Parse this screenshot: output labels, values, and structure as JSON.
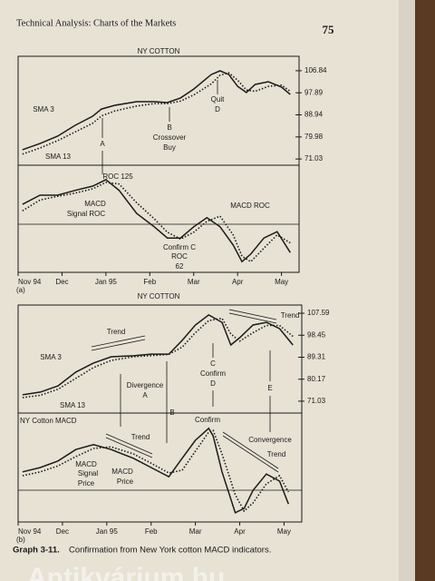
{
  "header": {
    "title": "Technical Analysis: Charts of the Markets",
    "page": "75"
  },
  "chart_data": [
    {
      "type": "line",
      "title": "NY COTTON",
      "xlim": [
        0,
        6.4
      ],
      "ylim": [
        68.5,
        112.7
      ],
      "yticks": [
        71.03,
        79.98,
        88.94,
        97.89,
        106.84
      ],
      "x": [
        0.1,
        0.5,
        0.9,
        1.3,
        1.7,
        1.9,
        2.2,
        2.7,
        3.1,
        3.4,
        3.7,
        4.0,
        4.4,
        4.6,
        4.8,
        5.0,
        5.2,
        5.4,
        5.7,
        6.0,
        6.2
      ],
      "series": [
        {
          "style": "solid",
          "color": "#1a1a1a",
          "values": [
            74.8,
            77.3,
            80.3,
            84.7,
            88.4,
            91.3,
            92.8,
            94.3,
            94.3,
            93.9,
            95.8,
            99.4,
            105.3,
            106.8,
            105.3,
            100.5,
            98.0,
            101.3,
            102.4,
            100.2,
            97.2
          ]
        },
        {
          "style": "dotted",
          "color": "#1a1a1a",
          "values": [
            73.0,
            75.5,
            78.5,
            82.0,
            85.5,
            88.5,
            90.5,
            92.5,
            93.5,
            93.5,
            94.5,
            97.0,
            101.5,
            105.0,
            106.0,
            103.0,
            99.0,
            98.5,
            100.5,
            101.0,
            98.5
          ]
        }
      ],
      "annotations": [
        "SMA 3",
        "SMA 13",
        "A",
        "B",
        "Crossover",
        "Buy",
        "Quit",
        "D"
      ]
    },
    {
      "type": "line",
      "xlim": [
        0,
        6.4
      ],
      "ylim": [
        -10,
        10
      ],
      "xticks": [
        {
          "value": 0,
          "label": "Nov 94"
        },
        {
          "value": 1,
          "label": "Dec"
        },
        {
          "value": 2,
          "label": "Jan 95"
        },
        {
          "value": 3,
          "label": "Feb"
        },
        {
          "value": 4,
          "label": "Mar"
        },
        {
          "value": 5,
          "label": "Apr"
        },
        {
          "value": 6,
          "label": "May"
        }
      ],
      "panel_label": "(a)",
      "x": [
        0.1,
        0.5,
        0.9,
        1.3,
        1.7,
        2.0,
        2.3,
        2.7,
        3.1,
        3.4,
        3.7,
        4.0,
        4.3,
        4.6,
        4.9,
        5.1,
        5.3,
        5.6,
        5.9,
        6.2
      ],
      "series": [
        {
          "style": "solid",
          "color": "#1a1a1a",
          "values": [
            2.7,
            4.4,
            4.4,
            5.3,
            6.1,
            7.3,
            5.3,
            1.0,
            -1.5,
            -3.6,
            -3.6,
            -1.5,
            0.2,
            -1.5,
            -4.9,
            -8.0,
            -6.6,
            -3.6,
            -2.4,
            -6.3
          ]
        },
        {
          "style": "dotted",
          "color": "#1a1a1a",
          "values": [
            1.5,
            3.5,
            4.2,
            4.8,
            5.6,
            6.8,
            6.5,
            3.0,
            0.0,
            -2.5,
            -3.8,
            -2.5,
            -0.5,
            0.5,
            -3.0,
            -7.0,
            -8.0,
            -5.5,
            -3.0,
            -4.5
          ]
        }
      ],
      "annotations": [
        "ROC 125",
        "MACD",
        "Signal ROC",
        "MACD ROC",
        "Confirm C",
        "ROC",
        "62"
      ]
    },
    {
      "type": "line",
      "title": "NY COTTON",
      "xlim": [
        0,
        6.4
      ],
      "ylim": [
        66.1,
        111.0
      ],
      "yticks": [
        71.03,
        80.17,
        89.31,
        98.45,
        107.59
      ],
      "x": [
        0.1,
        0.5,
        0.9,
        1.3,
        1.7,
        2.1,
        2.6,
        3.0,
        3.4,
        3.7,
        4.0,
        4.3,
        4.6,
        4.8,
        5.0,
        5.3,
        5.6,
        5.9,
        6.2
      ],
      "series": [
        {
          "style": "solid",
          "color": "#1a1a1a",
          "values": [
            73.7,
            74.8,
            77.4,
            83.1,
            86.9,
            89.5,
            89.9,
            90.6,
            90.6,
            96.3,
            102.7,
            106.9,
            103.8,
            94.4,
            97.4,
            102.7,
            103.8,
            101.2,
            94.4
          ]
        },
        {
          "style": "dotted",
          "color": "#1a1a1a",
          "values": [
            72.5,
            73.5,
            76.0,
            80.5,
            85.0,
            88.0,
            89.5,
            90.0,
            90.5,
            93.5,
            99.5,
            104.5,
            105.5,
            99.0,
            96.0,
            99.5,
            102.5,
            102.5,
            98.0
          ]
        }
      ],
      "annotations": [
        "Trend",
        "SMA 3",
        "SMA 13",
        "Divergence",
        "A",
        "B",
        "C",
        "Confirm",
        "D",
        "E",
        "Trend"
      ]
    },
    {
      "type": "line",
      "title": "NY Cotton MACD",
      "xlim": [
        0,
        6.4
      ],
      "ylim": [
        -10,
        10
      ],
      "xticks": [
        {
          "value": 0,
          "label": "Nov 94"
        },
        {
          "value": 1,
          "label": "Dec"
        },
        {
          "value": 2,
          "label": "Jan 95"
        },
        {
          "value": 3,
          "label": "Feb"
        },
        {
          "value": 4,
          "label": "Mar"
        },
        {
          "value": 5,
          "label": "Apr"
        },
        {
          "value": 6,
          "label": "May"
        }
      ],
      "panel_label": "(b)",
      "x": [
        0.1,
        0.5,
        0.9,
        1.3,
        1.7,
        2.1,
        2.6,
        3.0,
        3.4,
        3.7,
        4.0,
        4.3,
        4.4,
        4.6,
        4.9,
        5.1,
        5.3,
        5.6,
        5.9,
        6.1
      ],
      "series": [
        {
          "style": "solid",
          "color": "#1a1a1a",
          "values": [
            -0.8,
            0,
            1.2,
            3.3,
            4.2,
            3.3,
            1.7,
            0,
            -1.7,
            1.7,
            5.0,
            7.2,
            5.8,
            -0.8,
            -8.3,
            -7.5,
            -4.2,
            -1.2,
            -2.5,
            -6.7
          ]
        },
        {
          "style": "dotted",
          "color": "#1a1a1a",
          "values": [
            -1.5,
            -0.8,
            0.3,
            2.0,
            3.5,
            3.8,
            2.5,
            0.8,
            -1.0,
            -0.5,
            3.0,
            6.5,
            6.8,
            2.5,
            -5.0,
            -8.0,
            -6.5,
            -3.0,
            -1.5,
            -4.5
          ]
        }
      ],
      "annotations": [
        "Confirm",
        "Trend",
        "Convergence",
        "Trend",
        "MACD",
        "Signal",
        "Price",
        "MACD",
        "Price"
      ]
    }
  ],
  "caption": {
    "label": "Graph 3-11.",
    "text": "Confirmation from New York cotton MACD indicators."
  },
  "watermark": "Antikvárium.hu"
}
